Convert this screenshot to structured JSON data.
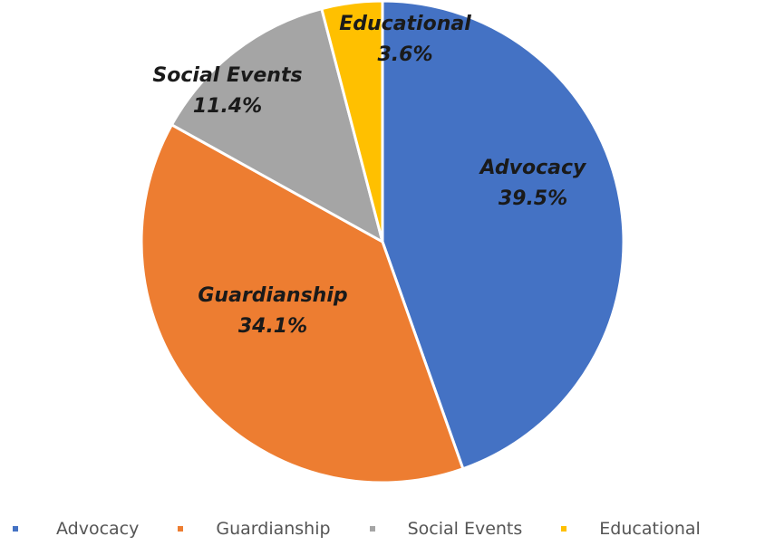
{
  "chart_data": {
    "type": "pie",
    "categories": [
      "Advocacy",
      "Guardianship",
      "Social Events",
      "Educational"
    ],
    "values": [
      39.5,
      34.1,
      11.4,
      3.6
    ],
    "value_unit": "%",
    "colors": [
      "#4472C4",
      "#ED7D31",
      "#A5A5A5",
      "#FFC000"
    ],
    "labels": [
      {
        "name": "Advocacy",
        "pct": "39.5%"
      },
      {
        "name": "Guardianship",
        "pct": "34.1%"
      },
      {
        "name": "Social Events",
        "pct": "11.4%"
      },
      {
        "name": "Educational",
        "pct": "3.6%"
      }
    ],
    "start_angle": "12 o'clock",
    "direction": "clockwise",
    "legend_position": "bottom",
    "title": ""
  }
}
